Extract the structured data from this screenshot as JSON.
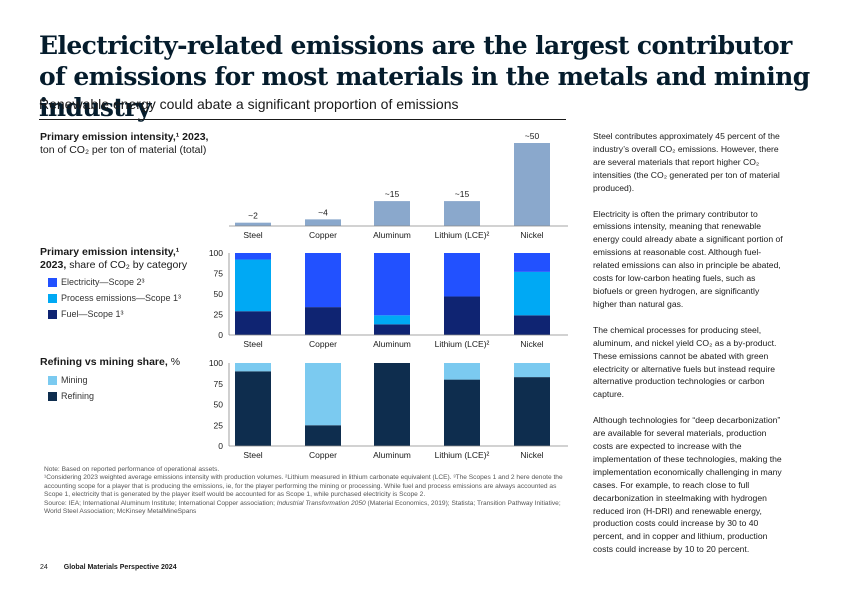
{
  "header": {
    "title": "Electricity-related emissions are the largest contributor of emissions for most materials in the metals and mining industry",
    "subtitle": "Renewable energy could abate a significant proportion of emissions"
  },
  "colors": {
    "intensity_bar": "#8aa8cc",
    "electricity": "#2251ff",
    "process": "#00a9f4",
    "fuel": "#0f2472",
    "mining": "#7bcaf0",
    "refining": "#0e2d4e",
    "axis": "#888888"
  },
  "sections": {
    "intensity": {
      "title_bold": "Primary emission intensity,¹ 2023,",
      "title_rest": "ton of CO₂ per ton of material (total)"
    },
    "share": {
      "title_bold": "Primary emission intensity,¹ 2023,",
      "title_rest": "share of CO₂ by category"
    },
    "refining": {
      "title_bold": "Refining vs mining share,",
      "title_rest": "%"
    }
  },
  "chart_data": [
    {
      "type": "bar",
      "categories": [
        "Steel",
        "Copper",
        "Aluminum",
        "Lithium (LCE)²",
        "Nickel"
      ],
      "values": [
        2,
        4,
        15,
        15,
        50
      ],
      "data_labels": [
        "~2",
        "~4",
        "~15",
        "~15",
        "~50"
      ],
      "ylabel": "ton of CO₂ per ton of material (total)"
    },
    {
      "type": "bar",
      "stacked": true,
      "categories": [
        "Steel",
        "Copper",
        "Aluminum",
        "Lithium (LCE)²",
        "Nickel"
      ],
      "ylim": [
        0,
        100
      ],
      "yticks": [
        "0",
        "25",
        "50",
        "75",
        "100"
      ],
      "series": [
        {
          "name": "Electricity—Scope 2³",
          "key": "electricity",
          "values": [
            8,
            66,
            76,
            53,
            23
          ]
        },
        {
          "name": "Process emissions—Scope 1³",
          "key": "process",
          "values": [
            63,
            0,
            11,
            0,
            53
          ]
        },
        {
          "name": "Fuel—Scope 1³",
          "key": "fuel",
          "values": [
            29,
            34,
            13,
            47,
            24
          ]
        }
      ],
      "legend_position": "left"
    },
    {
      "type": "bar",
      "stacked": true,
      "categories": [
        "Steel",
        "Copper",
        "Aluminum",
        "Lithium (LCE)²",
        "Nickel"
      ],
      "ylim": [
        0,
        100
      ],
      "yticks": [
        "0",
        "25",
        "50",
        "75",
        "100"
      ],
      "series": [
        {
          "name": "Mining",
          "key": "mining",
          "values": [
            10,
            75,
            0,
            20,
            17
          ]
        },
        {
          "name": "Refining",
          "key": "refining",
          "values": [
            90,
            25,
            100,
            80,
            83
          ]
        }
      ],
      "legend_position": "left"
    }
  ],
  "notes": {
    "note": "Note: Based on reported performance of operational assets.",
    "footnotes": "¹Considering 2023 weighted average emissions intensity with production volumes. ²Lithium measured in lithium carbonate equivalent (LCE). ³The Scopes 1 and 2 here denote the accounting scope for a player that is producing the emissions, ie, for the player performing the mining or processing. While fuel and process emissions are always accounted as Scope 1, electricity that is generated by the player itself would be accounted for as Scope 1, while purchased electricity is Scope 2.",
    "source_prefix": "Source: IEA; International Aluminum Institute; International Copper association; ",
    "source_italic": "Industrial Transformation 2050",
    "source_suffix": " (Material Economics, 2019); Statista; Transition Pathway Initiative; World Steel Association; McKinsey MetalMineSpans"
  },
  "sidebar": {
    "paragraphs": [
      "Steel contributes approximately 45 percent of the industry’s overall CO₂ emissions. However, there are several materials that report higher CO₂ intensities (the CO₂ generated per ton of material produced).",
      "Electricity is often the primary contributor to emissions intensity, meaning that renewable energy could already abate a significant portion of emissions at reasonable cost. Although fuel-related emissions can also in principle be abated, costs for low-carbon heating fuels, such as biofuels or green hydrogen, are significantly higher than natural gas.",
      "The chemical processes for producing steel, aluminum, and nickel yield CO₂ as a by-product. These emissions cannot be abated with green electricity or alternative fuels but instead require alternative production technologies or carbon capture.",
      "Although technologies for “deep decarbonization” are available for several materials, production costs are expected to increase with the implementation of these technologies, making the implementation economically challenging in many cases. For example, to reach close to full decarbonization in steelmaking with hydrogen reduced iron (H-DRI) and renewable energy, production costs could increase by 30 to 40 percent, and in copper and lithium, production costs could increase by 10 to 20 percent."
    ]
  },
  "footer": {
    "page_number": "24",
    "publication": "Global Materials Perspective 2024"
  }
}
